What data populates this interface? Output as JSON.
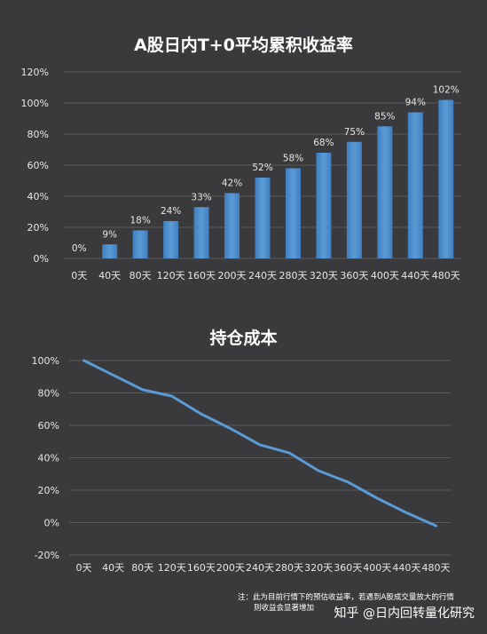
{
  "chart_data": [
    {
      "type": "bar",
      "title": "A股日内T+0平均累积收益率",
      "categories": [
        "0天",
        "40天",
        "80天",
        "120天",
        "160天",
        "200天",
        "240天",
        "280天",
        "320天",
        "360天",
        "400天",
        "440天",
        "480天"
      ],
      "values": [
        0,
        9,
        18,
        24,
        33,
        42,
        52,
        58,
        68,
        75,
        85,
        94,
        102
      ],
      "value_labels": [
        "0%",
        "9%",
        "18%",
        "24%",
        "33%",
        "42%",
        "52%",
        "58%",
        "68%",
        "75%",
        "85%",
        "94%",
        "102%"
      ],
      "y_ticks": [
        "0%",
        "20%",
        "40%",
        "60%",
        "80%",
        "100%",
        "120%"
      ],
      "ylim": [
        0,
        120
      ],
      "grid": true,
      "color": "#5b9bd5"
    },
    {
      "type": "line",
      "title": "持仓成本",
      "categories": [
        "0天",
        "40天",
        "80天",
        "120天",
        "160天",
        "200天",
        "240天",
        "280天",
        "320天",
        "360天",
        "400天",
        "440天",
        "480天"
      ],
      "values": [
        100,
        91,
        82,
        78,
        67,
        58,
        48,
        43,
        32,
        25,
        15,
        6,
        -2
      ],
      "y_ticks": [
        "-20%",
        "0%",
        "20%",
        "40%",
        "60%",
        "80%",
        "100%"
      ],
      "ylim": [
        -20,
        100
      ],
      "grid": true,
      "color": "#5b9bd5"
    }
  ],
  "note": {
    "line1": "注：此为目前行情下的预估收益率，若遇到A股成交量放大的行情",
    "line2": "则收益会显著增加"
  },
  "watermark": "知乎 @日内回转量化研究"
}
